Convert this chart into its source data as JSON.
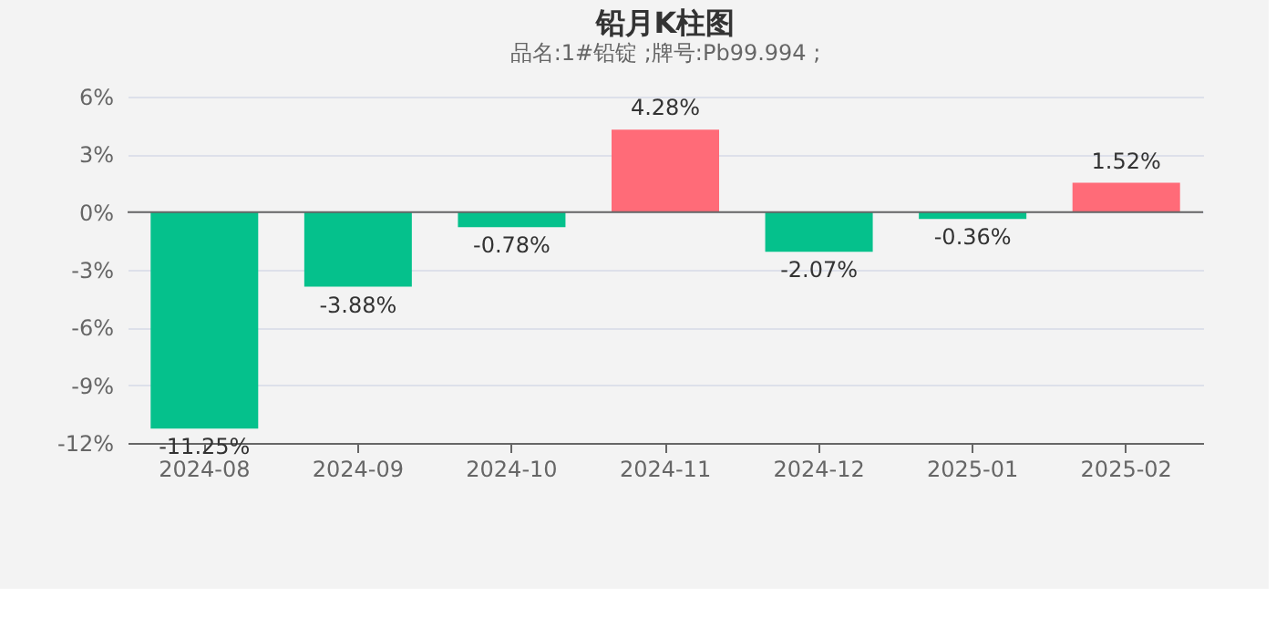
{
  "chart_data": {
    "type": "bar",
    "title": "铅月K柱图",
    "subtitle": "品名:1#铅锭 ;牌号:Pb99.994 ;",
    "categories": [
      "2024-08",
      "2024-09",
      "2024-10",
      "2024-11",
      "2024-12",
      "2025-01",
      "2025-02"
    ],
    "values": [
      -11.25,
      -3.88,
      -0.78,
      4.28,
      -2.07,
      -0.36,
      1.52
    ],
    "colors": [
      "#05c18c",
      "#05c18c",
      "#05c18c",
      "#ff6b78",
      "#05c18c",
      "#05c18c",
      "#ff6b78"
    ],
    "value_labels": [
      "-11.25%",
      "-3.88%",
      "-0.78%",
      "4.28%",
      "-2.07%",
      "-0.36%",
      "1.52%"
    ],
    "ylim": [
      -12,
      6
    ],
    "yticks": [
      {
        "value": -12,
        "label": "-12%"
      },
      {
        "value": -9,
        "label": "-9%"
      },
      {
        "value": -6,
        "label": "-6%"
      },
      {
        "value": -3,
        "label": "-3%"
      },
      {
        "value": 0,
        "label": "0%"
      },
      {
        "value": 3,
        "label": "3%"
      },
      {
        "value": 6,
        "label": "6%"
      }
    ],
    "grid": "y"
  }
}
